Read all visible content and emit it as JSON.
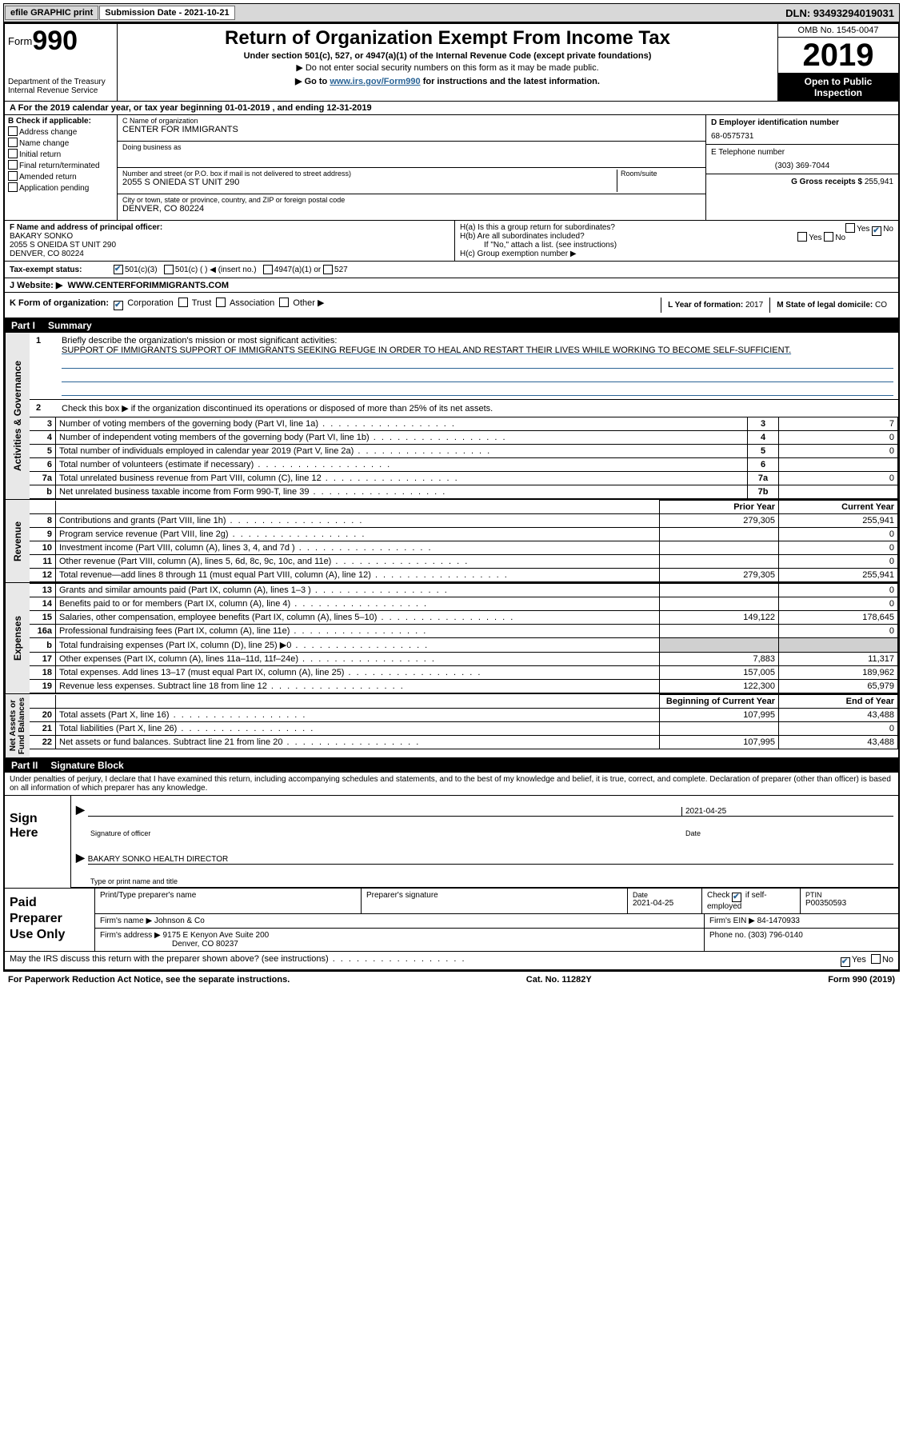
{
  "topbar": {
    "efile": "efile GRAPHIC print",
    "sub_label": "Submission Date - 2021-10-21",
    "dln": "DLN: 93493294019031"
  },
  "header": {
    "form_word": "Form",
    "form_no": "990",
    "dept": "Department of the Treasury\nInternal Revenue Service",
    "title": "Return of Organization Exempt From Income Tax",
    "sub": "Under section 501(c), 527, or 4947(a)(1) of the Internal Revenue Code (except private foundations)",
    "sub2": "▶ Do not enter social security numbers on this form as it may be made public.",
    "sub3_pre": "▶ Go to ",
    "sub3_link": "www.irs.gov/Form990",
    "sub3_post": " for instructions and the latest information.",
    "omb": "OMB No. 1545-0047",
    "year": "2019",
    "open": "Open to Public\nInspection"
  },
  "rowA": "A For the 2019 calendar year, or tax year beginning 01-01-2019    , and ending 12-31-2019",
  "B": {
    "label": "B Check if applicable:",
    "opts": [
      "Address change",
      "Name change",
      "Initial return",
      "Final return/terminated",
      "Amended return",
      "Application pending"
    ]
  },
  "C": {
    "name_lbl": "C Name of organization",
    "name": "CENTER FOR IMMIGRANTS",
    "dba_lbl": "Doing business as",
    "dba": "",
    "street_lbl": "Number and street (or P.O. box if mail is not delivered to street address)",
    "street": "2055 S ONIEDA ST UNIT 290",
    "room_lbl": "Room/suite",
    "city_lbl": "City or town, state or province, country, and ZIP or foreign postal code",
    "city": "DENVER, CO  80224"
  },
  "D": {
    "ein_lbl": "D Employer identification number",
    "ein": "68-0575731",
    "tel_lbl": "E Telephone number",
    "tel": "(303) 369-7044",
    "gross_lbl": "G Gross receipts $ ",
    "gross": "255,941"
  },
  "F": {
    "lbl": "F  Name and address of principal officer:",
    "name": "BAKARY SONKO",
    "addr1": "2055 S ONEIDA ST UNIT 290",
    "addr2": "DENVER, CO  80224"
  },
  "H": {
    "a": "H(a)  Is this a group return for subordinates?",
    "b": "H(b)  Are all subordinates included?",
    "ifno": "If \"No,\" attach a list. (see instructions)",
    "c": "H(c)  Group exemption number ▶"
  },
  "I": {
    "lbl": "Tax-exempt status:",
    "o1": "501(c)(3)",
    "o2": "501(c) (  ) ◀ (insert no.)",
    "o3": "4947(a)(1) or",
    "o4": "527"
  },
  "J": {
    "lbl": "J    Website: ▶",
    "val": "WWW.CENTERFORIMMIGRANTS.COM"
  },
  "K": {
    "lbl": "K Form of organization:",
    "o1": "Corporation",
    "o2": "Trust",
    "o3": "Association",
    "o4": "Other ▶"
  },
  "L": {
    "lbl": "L Year of formation: ",
    "val": "2017"
  },
  "M": {
    "lbl": "M State of legal domicile: ",
    "val": "CO"
  },
  "part1": {
    "label": "Part I",
    "title": "Summary"
  },
  "mission": {
    "n": "1",
    "lbl": "Briefly describe the organization's mission or most significant activities:",
    "text": "SUPPORT OF IMMIGRANTS SUPPORT OF IMMIGRANTS SEEKING REFUGE IN ORDER TO HEAL AND RESTART THEIR LIVES WHILE WORKING TO BECOME SELF-SUFFICIENT."
  },
  "actgov": {
    "label": "Activities & Governance",
    "l2": "Check this box ▶        if the organization discontinued its operations or disposed of more than 25% of its net assets.",
    "rows": [
      {
        "n": "3",
        "d": "Number of voting members of the governing body (Part VI, line 1a)",
        "b": "3",
        "v": "7"
      },
      {
        "n": "4",
        "d": "Number of independent voting members of the governing body (Part VI, line 1b)",
        "b": "4",
        "v": "0"
      },
      {
        "n": "5",
        "d": "Total number of individuals employed in calendar year 2019 (Part V, line 2a)",
        "b": "5",
        "v": "0"
      },
      {
        "n": "6",
        "d": "Total number of volunteers (estimate if necessary)",
        "b": "6",
        "v": ""
      },
      {
        "n": "7a",
        "d": "Total unrelated business revenue from Part VIII, column (C), line 12",
        "b": "7a",
        "v": "0"
      },
      {
        "n": "b",
        "d": "Net unrelated business taxable income from Form 990-T, line 39",
        "b": "7b",
        "v": ""
      }
    ]
  },
  "revenue": {
    "label": "Revenue",
    "hdr_prior": "Prior Year",
    "hdr_curr": "Current Year",
    "rows": [
      {
        "n": "8",
        "d": "Contributions and grants (Part VIII, line 1h)",
        "p": "279,305",
        "c": "255,941"
      },
      {
        "n": "9",
        "d": "Program service revenue (Part VIII, line 2g)",
        "p": "",
        "c": "0"
      },
      {
        "n": "10",
        "d": "Investment income (Part VIII, column (A), lines 3, 4, and 7d )",
        "p": "",
        "c": "0"
      },
      {
        "n": "11",
        "d": "Other revenue (Part VIII, column (A), lines 5, 6d, 8c, 9c, 10c, and 11e)",
        "p": "",
        "c": "0"
      },
      {
        "n": "12",
        "d": "Total revenue—add lines 8 through 11 (must equal Part VIII, column (A), line 12)",
        "p": "279,305",
        "c": "255,941"
      }
    ]
  },
  "expenses": {
    "label": "Expenses",
    "rows": [
      {
        "n": "13",
        "d": "Grants and similar amounts paid (Part IX, column (A), lines 1–3 )",
        "p": "",
        "c": "0"
      },
      {
        "n": "14",
        "d": "Benefits paid to or for members (Part IX, column (A), line 4)",
        "p": "",
        "c": "0"
      },
      {
        "n": "15",
        "d": "Salaries, other compensation, employee benefits (Part IX, column (A), lines 5–10)",
        "p": "149,122",
        "c": "178,645"
      },
      {
        "n": "16a",
        "d": "Professional fundraising fees (Part IX, column (A), line 11e)",
        "p": "",
        "c": "0"
      },
      {
        "n": "b",
        "d": "Total fundraising expenses (Part IX, column (D), line 25) ▶0",
        "p": "shade",
        "c": "shade"
      },
      {
        "n": "17",
        "d": "Other expenses (Part IX, column (A), lines 11a–11d, 11f–24e)",
        "p": "7,883",
        "c": "11,317"
      },
      {
        "n": "18",
        "d": "Total expenses. Add lines 13–17 (must equal Part IX, column (A), line 25)",
        "p": "157,005",
        "c": "189,962"
      },
      {
        "n": "19",
        "d": "Revenue less expenses. Subtract line 18 from line 12",
        "p": "122,300",
        "c": "65,979"
      }
    ]
  },
  "netassets": {
    "label": "Net Assets or\nFund Balances",
    "hdr_beg": "Beginning of Current Year",
    "hdr_end": "End of Year",
    "rows": [
      {
        "n": "20",
        "d": "Total assets (Part X, line 16)",
        "p": "107,995",
        "c": "43,488"
      },
      {
        "n": "21",
        "d": "Total liabilities (Part X, line 26)",
        "p": "",
        "c": "0"
      },
      {
        "n": "22",
        "d": "Net assets or fund balances. Subtract line 21 from line 20",
        "p": "107,995",
        "c": "43,488"
      }
    ]
  },
  "part2": {
    "label": "Part II",
    "title": "Signature Block"
  },
  "penalties": "Under penalties of perjury, I declare that I have examined this return, including accompanying schedules and statements, and to the best of my knowledge and belief, it is true, correct, and complete. Declaration of preparer (other than officer) is based on all information of which preparer has any knowledge.",
  "sign": {
    "here": "Sign\nHere",
    "sig_lbl": "Signature of officer",
    "date_lbl": "Date",
    "date": "2021-04-25",
    "name": "BAKARY SONKO  HEALTH DIRECTOR",
    "name_lbl": "Type or print name and title"
  },
  "paid": {
    "here": "Paid\nPreparer\nUse Only",
    "r1": {
      "c1": "Print/Type preparer's name",
      "c2": "Preparer's signature",
      "c3l": "Date",
      "c3": "2021-04-25",
      "c4": "Check        if self-employed",
      "c5l": "PTIN",
      "c5": "P00350593"
    },
    "r2": {
      "c1l": "Firm's name     ▶",
      "c1": "Johnson & Co",
      "c2l": "Firm's EIN ▶",
      "c2": "84-1470933"
    },
    "r3": {
      "c1l": "Firm's address ▶",
      "c1a": "9175 E Kenyon Ave Suite 200",
      "c1b": "Denver, CO  80237",
      "c2l": "Phone no.",
      "c2": "(303) 796-0140"
    }
  },
  "discuss": "May the IRS discuss this return with the preparer shown above? (see instructions)",
  "footer": {
    "pra": "For Paperwork Reduction Act Notice, see the separate instructions.",
    "cat": "Cat. No. 11282Y",
    "form": "Form 990 (2019)"
  }
}
